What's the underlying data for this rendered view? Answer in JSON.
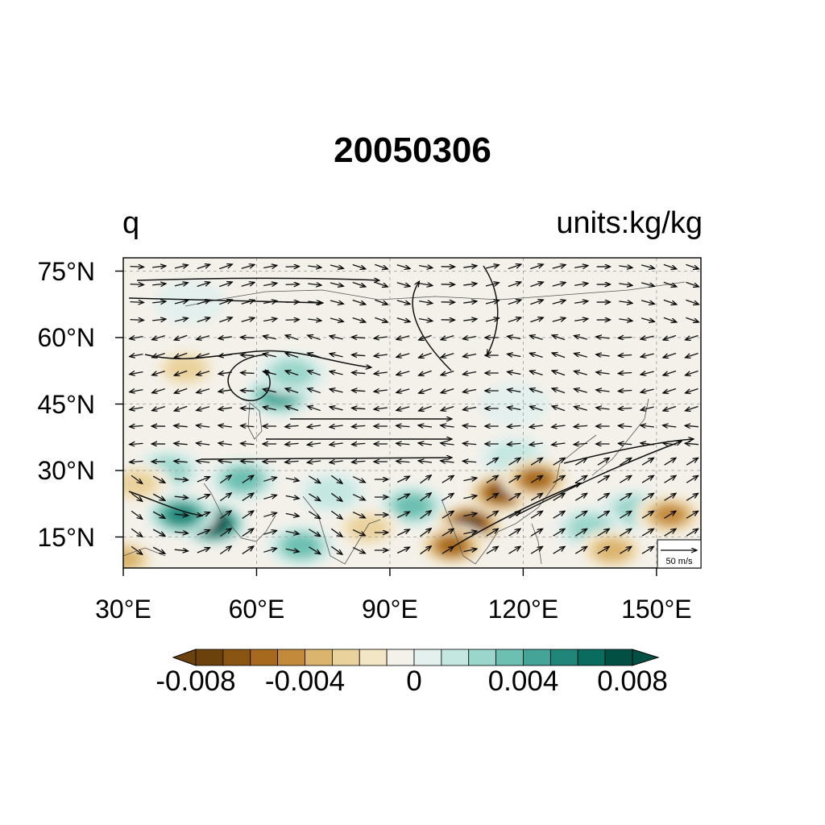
{
  "figure": {
    "title": "20050306",
    "left_title": "q",
    "right_title": "units:kg/kg"
  },
  "map": {
    "projection": "cylindrical equidistant",
    "lon_range": [
      30,
      160
    ],
    "lat_range": [
      8,
      78
    ],
    "lon_ticks": [
      {
        "value": 30,
        "label": "30°E"
      },
      {
        "value": 60,
        "label": "60°E"
      },
      {
        "value": 90,
        "label": "90°E"
      },
      {
        "value": 120,
        "label": "120°E"
      },
      {
        "value": 150,
        "label": "150°E"
      }
    ],
    "lat_ticks": [
      {
        "value": 15,
        "label": "15°N"
      },
      {
        "value": 30,
        "label": "30°N"
      },
      {
        "value": 45,
        "label": "45°N"
      },
      {
        "value": 60,
        "label": "60°N"
      },
      {
        "value": 75,
        "label": "75°N"
      }
    ],
    "gridlines": "dashed",
    "fill_variable": "q",
    "overlay": "wind streamlines"
  },
  "reference_vector": {
    "label": "50 m/s",
    "placement": "bottom-right inside map"
  },
  "colorbar": {
    "colors": [
      "#6b420c",
      "#8a5512",
      "#a6691e",
      "#c48a3c",
      "#dbb56e",
      "#ead29c",
      "#f3e6c6",
      "#f4f1ea",
      "#e3f0ee",
      "#c5e7e1",
      "#9ad6cb",
      "#6cc0b2",
      "#43a497",
      "#21867a",
      "#0a6c5f",
      "#024f44"
    ],
    "min_extend_color": "#6b420c",
    "max_extend_color": "#024f44",
    "levels": [
      -0.008,
      -0.007,
      -0.006,
      -0.005,
      -0.004,
      -0.003,
      -0.002,
      -0.001,
      0,
      0.001,
      0.002,
      0.003,
      0.004,
      0.005,
      0.006,
      0.007,
      0.008
    ],
    "labels": [
      {
        "value": -0.008,
        "label": "-0.008"
      },
      {
        "value": -0.004,
        "label": "-0.004"
      },
      {
        "value": 0,
        "label": "0"
      },
      {
        "value": 0.004,
        "label": "0.004"
      },
      {
        "value": 0.008,
        "label": "0.008"
      }
    ]
  },
  "anomaly_field": [
    {
      "lon": 50,
      "lat": 18,
      "value": 0.0085
    },
    {
      "lon": 43,
      "lat": 20,
      "value": 0.006
    },
    {
      "lon": 65,
      "lat": 47,
      "value": 0.0045
    },
    {
      "lon": 68,
      "lat": 52,
      "value": 0.003
    },
    {
      "lon": 57,
      "lat": 28,
      "value": 0.0035
    },
    {
      "lon": 40,
      "lat": 30,
      "value": 0.003
    },
    {
      "lon": 70,
      "lat": 13,
      "value": 0.004
    },
    {
      "lon": 95,
      "lat": 22,
      "value": 0.004
    },
    {
      "lon": 77,
      "lat": 25,
      "value": 0.002
    },
    {
      "lon": 145,
      "lat": 21,
      "value": 0.003
    },
    {
      "lon": 135,
      "lat": 17,
      "value": 0.0025
    },
    {
      "lon": 118,
      "lat": 33,
      "value": 0.002
    },
    {
      "lon": 108,
      "lat": 18,
      "value": -0.008
    },
    {
      "lon": 115,
      "lat": 25,
      "value": -0.0065
    },
    {
      "lon": 123,
      "lat": 28,
      "value": -0.0055
    },
    {
      "lon": 104,
      "lat": 13,
      "value": -0.006
    },
    {
      "lon": 153,
      "lat": 20,
      "value": -0.005
    },
    {
      "lon": 140,
      "lat": 12,
      "value": -0.004
    },
    {
      "lon": 85,
      "lat": 17,
      "value": -0.003
    },
    {
      "lon": 30,
      "lat": 10,
      "value": -0.004
    },
    {
      "lon": 33,
      "lat": 27,
      "value": -0.003
    },
    {
      "lon": 44,
      "lat": 53,
      "value": -0.0025
    },
    {
      "lon": 118,
      "lat": 45,
      "value": 0.001
    },
    {
      "lon": 45,
      "lat": 68,
      "value": 0.001
    },
    {
      "lon": 150,
      "lat": 45,
      "value": -0.0008
    }
  ]
}
